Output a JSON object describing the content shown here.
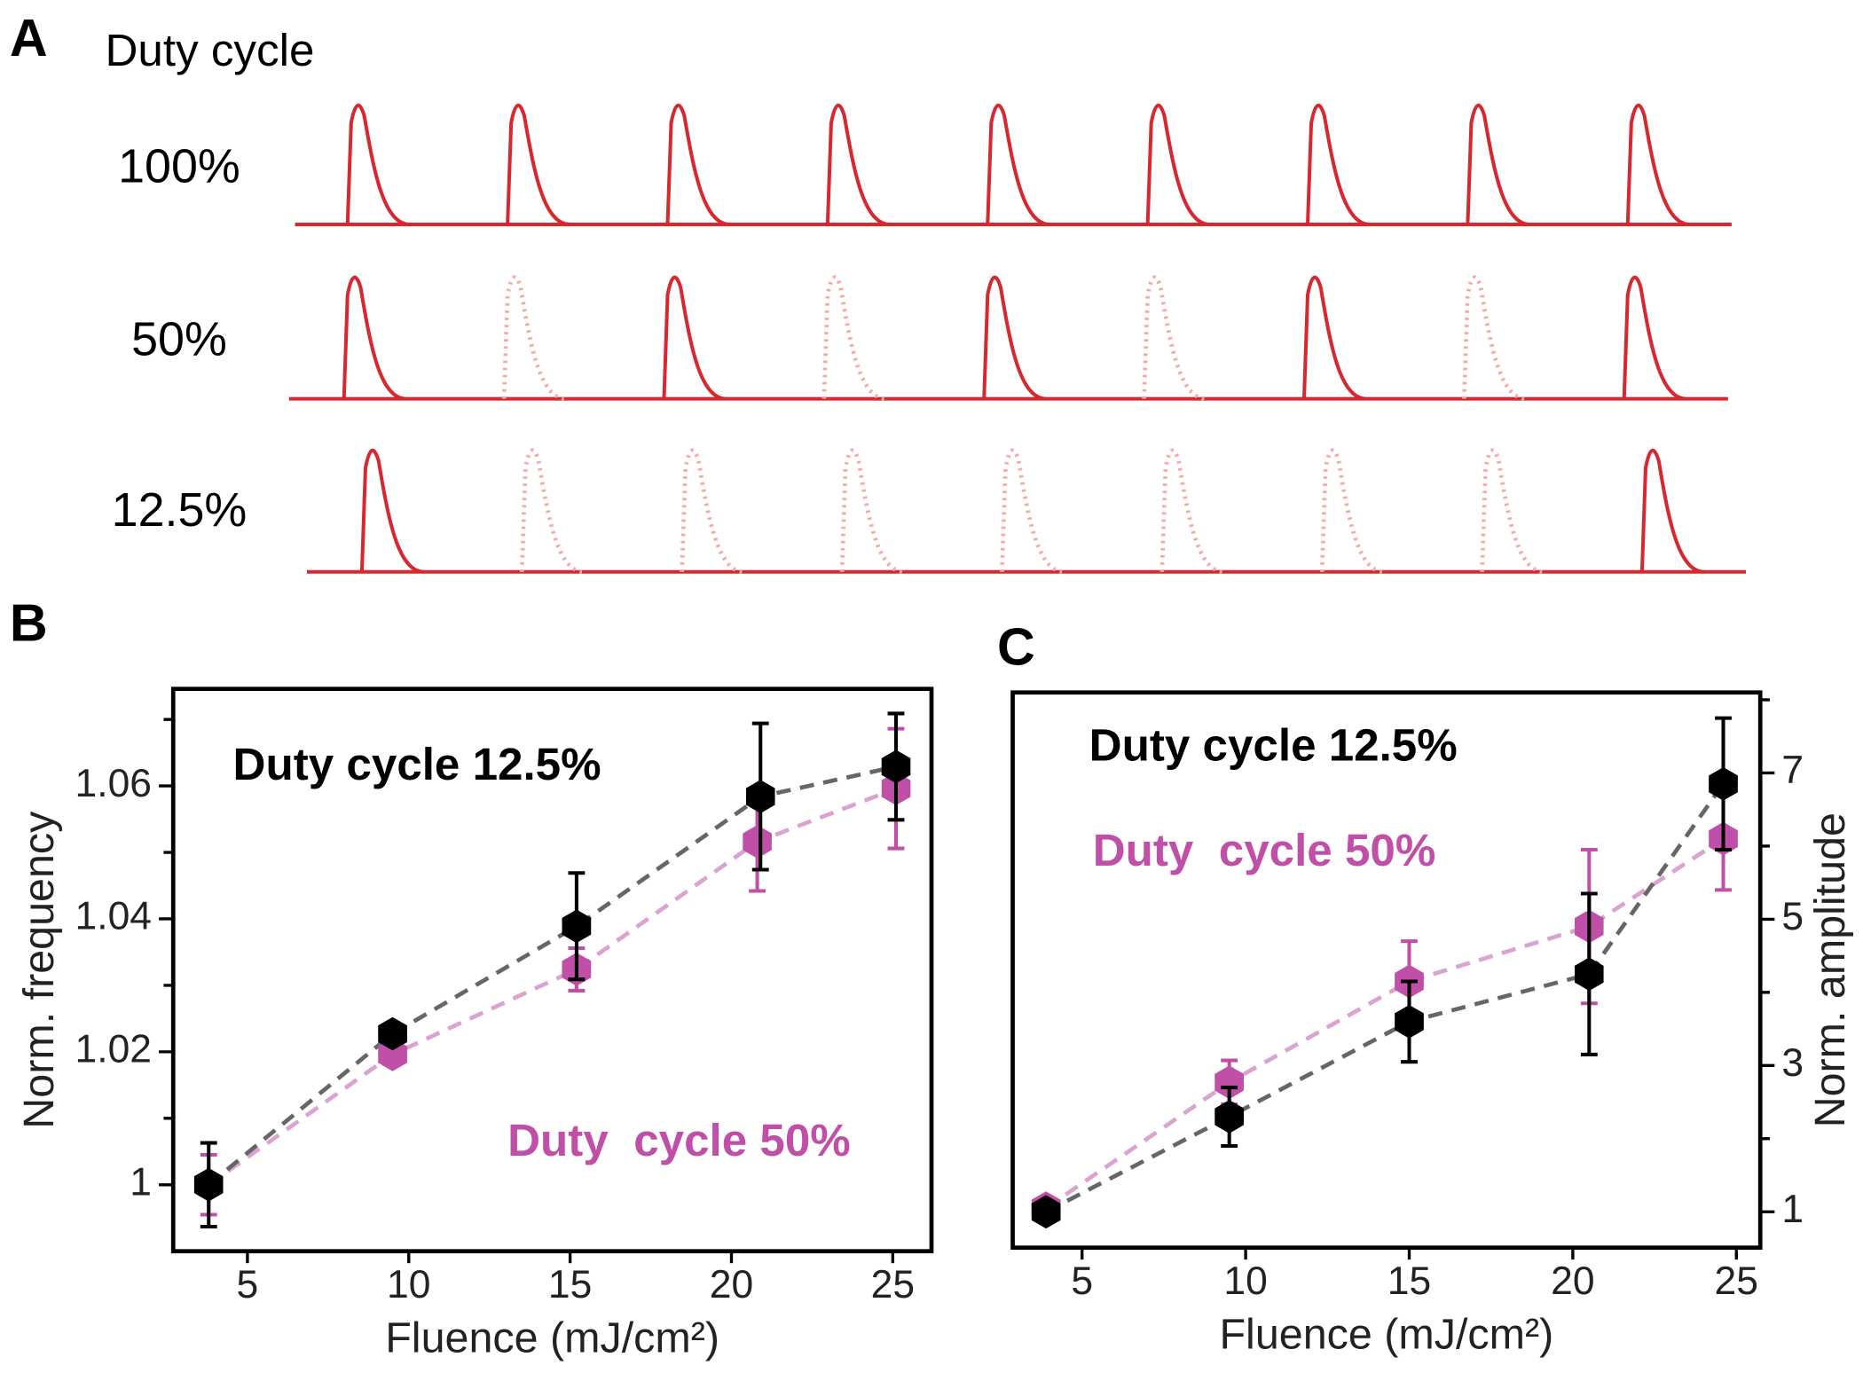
{
  "panel_a": {
    "panel_label": "A",
    "title": "Duty cycle",
    "pulse_color": "#d7282f",
    "ghost_color": "#f4aaa5",
    "rows": [
      {
        "label": "100%",
        "pulses": [
          1,
          1,
          1,
          1,
          1,
          1,
          1,
          1,
          1
        ]
      },
      {
        "label": "50%",
        "pulses": [
          1,
          0,
          1,
          0,
          1,
          0,
          1,
          0,
          1
        ]
      },
      {
        "label": "12.5%",
        "pulses": [
          1,
          0,
          0,
          0,
          0,
          0,
          0,
          0,
          1
        ]
      }
    ]
  },
  "chart_data": [
    {
      "type": "line",
      "panel_label": "B",
      "xlabel": "Fluence (mJ/cm²)",
      "ylabel": "Norm. frequency",
      "xlim": [
        2.7,
        26.2
      ],
      "xticks": [
        5,
        10,
        15,
        20,
        25
      ],
      "ylim": [
        0.99,
        1.0746
      ],
      "yticks": [
        1,
        1.02,
        1.04,
        1.06
      ],
      "yminorticks": [
        1.01,
        1.03,
        1.05,
        1.07
      ],
      "y_axis_side": "left",
      "series": [
        {
          "name": "Duty cycle 12.5%",
          "color": "#000000",
          "line_color": "#666666",
          "x": [
            3.8,
            9.5,
            15.2,
            20.9,
            25.1
          ],
          "values": [
            1.0,
            1.0227,
            1.0389,
            1.0584,
            1.0629
          ],
          "errors": [
            0.0063,
            0.0015,
            0.008,
            0.011,
            0.008
          ]
        },
        {
          "name": "Duty  cycle 50%",
          "color": "#c04fa8",
          "line_color": "#dba3d0",
          "x": [
            3.8,
            9.5,
            15.2,
            20.8,
            25.1
          ],
          "values": [
            1.0,
            1.0196,
            1.0324,
            1.0516,
            1.0596
          ],
          "errors": [
            0.0045,
            0.001,
            0.0032,
            0.0074,
            0.009
          ]
        }
      ]
    },
    {
      "type": "line",
      "panel_label": "C",
      "xlabel": "Fluence (mJ/cm²)",
      "ylabel": "Norm. amplitude",
      "xlim": [
        2.88,
        25.73
      ],
      "xticks": [
        5,
        10,
        15,
        20,
        25
      ],
      "ylim": [
        0.51,
        8.1
      ],
      "yticks": [
        1,
        3,
        5,
        7
      ],
      "yminorticks": [
        2,
        4,
        6,
        8
      ],
      "y_axis_side": "right",
      "series": [
        {
          "name": "Duty cycle 12.5%",
          "color": "#000000",
          "line_color": "#666666",
          "x": [
            3.9,
            9.5,
            15.0,
            20.5,
            24.6
          ],
          "values": [
            1.0,
            2.3,
            3.6,
            4.25,
            6.85
          ],
          "errors": [
            0.1,
            0.4,
            0.55,
            1.1,
            0.9
          ]
        },
        {
          "name": "Duty  cycle 50%",
          "color": "#c04fa8",
          "line_color": "#dba3d0",
          "x": [
            3.9,
            9.5,
            15.0,
            20.5,
            24.6
          ],
          "values": [
            1.05,
            2.77,
            4.15,
            4.9,
            6.1
          ],
          "errors": [
            0.1,
            0.3,
            0.55,
            1.05,
            0.7
          ]
        }
      ]
    }
  ]
}
